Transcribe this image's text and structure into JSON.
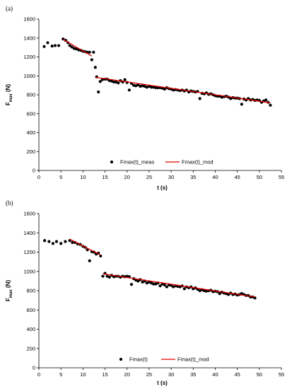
{
  "chart_data": [
    {
      "type": "scatter",
      "panel_label": "(a)",
      "xlabel": "t (s)",
      "ylabel": "F",
      "ylabel_sub": "max",
      "ylabel_unit": " (N)",
      "xlim": [
        0,
        55
      ],
      "ylim": [
        0,
        1600
      ],
      "xticks": [
        "0",
        "5",
        "10",
        "15",
        "20",
        "25",
        "30",
        "35",
        "40",
        "45",
        "50",
        "55"
      ],
      "yticks": [
        "0",
        "200",
        "400",
        "600",
        "800",
        "1000",
        "1200",
        "1400",
        "1600"
      ],
      "legend_position": "bottom-right",
      "series": [
        {
          "name": "Fmax(t)_meas",
          "kind": "markers",
          "color": "#000000",
          "x": [
            1.2,
            2.0,
            3.0,
            3.7,
            4.5,
            5.5,
            6.1,
            6.6,
            7.0,
            7.5,
            8.0,
            8.5,
            9.0,
            9.5,
            10.0,
            10.5,
            11.0,
            11.5,
            12.0,
            12.4,
            12.8,
            13.1,
            13.5,
            13.9,
            14.4,
            15.0,
            15.5,
            16.0,
            16.5,
            17.0,
            17.5,
            18.0,
            18.5,
            19.0,
            19.5,
            20.0,
            20.5,
            21.0,
            21.5,
            22.0,
            22.5,
            23.0,
            23.5,
            24.0,
            24.5,
            25.0,
            25.5,
            26.0,
            26.5,
            27.0,
            27.5,
            28.0,
            28.5,
            29.0,
            29.5,
            30.0,
            30.5,
            31.0,
            31.5,
            32.0,
            32.5,
            33.0,
            33.5,
            34.0,
            34.5,
            35.0,
            35.5,
            36.0,
            36.5,
            37.0,
            37.5,
            38.0,
            38.5,
            39.0,
            39.5,
            40.0,
            40.5,
            41.0,
            41.5,
            42.0,
            42.5,
            43.0,
            43.5,
            44.0,
            44.5,
            45.0,
            45.5,
            46.0,
            46.5,
            47.0,
            47.5,
            48.0,
            48.5,
            49.0,
            49.5,
            50.0,
            50.5,
            51.0,
            51.5,
            52.0,
            52.5
          ],
          "y": [
            1310,
            1350,
            1315,
            1320,
            1320,
            1390,
            1375,
            1350,
            1320,
            1305,
            1290,
            1285,
            1275,
            1270,
            1260,
            1255,
            1250,
            1250,
            1170,
            1250,
            1090,
            990,
            830,
            940,
            960,
            965,
            965,
            950,
            945,
            935,
            935,
            925,
            950,
            935,
            960,
            930,
            850,
            920,
            900,
            895,
            905,
            890,
            895,
            890,
            880,
            890,
            880,
            880,
            875,
            875,
            875,
            870,
            860,
            875,
            865,
            860,
            850,
            855,
            850,
            845,
            850,
            840,
            850,
            830,
            840,
            835,
            830,
            835,
            760,
            815,
            810,
            820,
            805,
            810,
            800,
            790,
            785,
            785,
            775,
            780,
            785,
            775,
            760,
            770,
            765,
            765,
            760,
            700,
            755,
            745,
            760,
            745,
            750,
            740,
            745,
            740,
            720,
            735,
            745,
            720,
            690
          ]
        },
        {
          "name": "Fmax(t)_mod",
          "kind": "line",
          "color": "#e00000",
          "segments": [
            {
              "x": [
                5.5,
                12.0
              ],
              "y": [
                1385,
                1210
              ]
            },
            {
              "x": [
                12.8,
                52.5
              ],
              "y": [
                985,
                715
              ]
            }
          ]
        }
      ]
    },
    {
      "type": "scatter",
      "panel_label": "(b)",
      "xlabel": "t (s)",
      "ylabel": "F",
      "ylabel_sub": "max",
      "ylabel_unit": " (N)",
      "xlim": [
        0,
        55
      ],
      "ylim": [
        0,
        1600
      ],
      "xticks": [
        "0",
        "5",
        "10",
        "15",
        "20",
        "25",
        "30",
        "35",
        "40",
        "45",
        "50",
        "55"
      ],
      "yticks": [
        "0",
        "200",
        "400",
        "600",
        "800",
        "1000",
        "1200",
        "1400",
        "1600"
      ],
      "legend_position": "bottom-right",
      "series": [
        {
          "name": "Fmax(t)",
          "kind": "markers",
          "color": "#000000",
          "x": [
            1.3,
            2.3,
            3.2,
            4.0,
            5.0,
            6.0,
            7.0,
            7.6,
            8.2,
            8.8,
            9.4,
            10.0,
            10.5,
            11.0,
            11.5,
            12.0,
            12.5,
            13.0,
            13.5,
            14.0,
            14.5,
            15.0,
            15.5,
            16.0,
            16.5,
            17.0,
            17.5,
            18.0,
            18.5,
            19.0,
            19.5,
            20.0,
            20.5,
            21.0,
            21.5,
            22.0,
            22.5,
            23.0,
            23.5,
            24.0,
            24.5,
            25.0,
            25.5,
            26.0,
            26.5,
            27.0,
            27.5,
            28.0,
            28.5,
            29.0,
            29.5,
            30.0,
            30.5,
            31.0,
            31.5,
            32.0,
            32.5,
            33.0,
            33.5,
            34.0,
            34.5,
            35.0,
            35.5,
            36.0,
            36.5,
            37.0,
            37.5,
            38.0,
            38.5,
            39.0,
            39.5,
            40.0,
            40.5,
            41.0,
            41.5,
            42.0,
            42.5,
            43.0,
            43.5,
            44.0,
            44.5,
            45.0,
            45.5,
            46.0,
            46.5,
            47.0,
            47.5,
            48.0,
            48.5,
            49.0
          ],
          "y": [
            1320,
            1310,
            1290,
            1310,
            1290,
            1310,
            1320,
            1300,
            1300,
            1285,
            1280,
            1260,
            1250,
            1225,
            1110,
            1205,
            1200,
            1180,
            1190,
            1160,
            950,
            980,
            950,
            940,
            960,
            945,
            950,
            950,
            940,
            950,
            945,
            950,
            945,
            865,
            925,
            910,
            900,
            915,
            890,
            900,
            880,
            890,
            880,
            870,
            870,
            880,
            850,
            870,
            860,
            840,
            860,
            855,
            840,
            850,
            845,
            840,
            850,
            820,
            840,
            830,
            840,
            820,
            830,
            815,
            800,
            810,
            800,
            795,
            800,
            805,
            790,
            795,
            790,
            770,
            785,
            775,
            770,
            760,
            775,
            760,
            765,
            755,
            760,
            770,
            760,
            750,
            750,
            735,
            735,
            725
          ]
        },
        {
          "name": "Fmax(t)_mod",
          "kind": "line",
          "color": "#e00000",
          "segments": [
            {
              "x": [
                7.0,
                14.0
              ],
              "y": [
                1335,
                1170
              ]
            },
            {
              "x": [
                14.5,
                49.0
              ],
              "y": [
                975,
                735
              ]
            }
          ]
        }
      ]
    }
  ]
}
